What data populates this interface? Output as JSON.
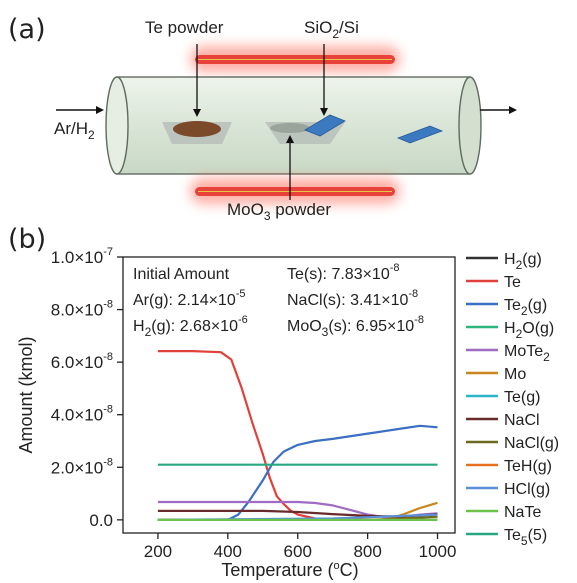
{
  "panel_a": {
    "label": "(a)",
    "te_powder": "Te powder",
    "substrate": {
      "main": "SiO",
      "sub": "2",
      "tail": "/Si"
    },
    "gas": {
      "main": "Ar/H",
      "sub": "2"
    },
    "moo3": {
      "main": "MoO",
      "sub": "3",
      "tail": " powder"
    },
    "colors": {
      "tube": "#dfe9dd",
      "heater": "#e8413a",
      "te_pile": "#7a4a2a",
      "substrate": "#3b79c0",
      "boat": "#b9c1bb"
    },
    "icons": [
      "arrow-right-icon",
      "arrow-right-icon",
      "arrow-down-icon",
      "arrow-up-icon"
    ]
  },
  "panel_b": {
    "label": "(b)"
  },
  "chart_data": {
    "type": "line",
    "xlabel": {
      "main": "Temperature (",
      "sup": "o",
      "tail": "C)"
    },
    "ylabel": "Amount (kmol)",
    "xlim": [
      100,
      1050
    ],
    "ylim": [
      -5e-09,
      1e-07
    ],
    "x_ticks": [
      {
        "v": 200,
        "label": "200"
      },
      {
        "v": 400,
        "label": "400"
      },
      {
        "v": 600,
        "label": "600"
      },
      {
        "v": 800,
        "label": "800"
      },
      {
        "v": 1000,
        "label": "1000"
      }
    ],
    "y_ticks": [
      {
        "v": 0.0,
        "label": "0.0",
        "exp": ""
      },
      {
        "v": 2e-08,
        "label": "2.0x10",
        "exp": "-8"
      },
      {
        "v": 4e-08,
        "label": "4.0x10",
        "exp": "-8"
      },
      {
        "v": 6e-08,
        "label": "6.0x10",
        "exp": "-8"
      },
      {
        "v": 8e-08,
        "label": "8.0x10",
        "exp": "-8"
      },
      {
        "v": 1e-07,
        "label": "1.0x10",
        "exp": "-7"
      }
    ],
    "annotations": {
      "initial_title": "Initial Amount",
      "rows": [
        {
          "lhs": "Ar(g): 2.14×10",
          "exp": "-5"
        },
        {
          "lhs": "H",
          "sub": "2",
          "rest": "(g): 2.68×10",
          "exp": "-6"
        },
        {
          "lhs": "Te(s): 7.83×10",
          "exp": "-8"
        },
        {
          "lhs": "NaCl(s): 3.41×10",
          "exp": "-8"
        },
        {
          "lhs": "MoO",
          "sub": "3",
          "rest": "(s): 6.95×10",
          "exp": "-8"
        }
      ]
    },
    "series": [
      {
        "name": "H",
        "sub": "2",
        "tail": "(g)",
        "color": "#333333",
        "x": [
          200,
          1000
        ],
        "y": [
          0.0,
          0.0
        ]
      },
      {
        "name": "Te",
        "color": "#e0413a",
        "x": [
          200,
          300,
          380,
          410,
          440,
          470,
          500,
          520,
          540,
          560,
          580,
          600,
          650,
          700,
          1000
        ],
        "y": [
          6.42e-08,
          6.42e-08,
          6.38e-08,
          6.1e-08,
          5e-08,
          3.7e-08,
          2.5e-08,
          1.6e-08,
          9e-09,
          6e-09,
          3.5e-09,
          2e-09,
          5e-10,
          0.0,
          0.0
        ]
      },
      {
        "name": "Te",
        "sub": "2",
        "tail": "(g)",
        "color": "#3b6fc4",
        "x": [
          200,
          400,
          430,
          460,
          500,
          530,
          560,
          600,
          650,
          700,
          800,
          900,
          950,
          1000
        ],
        "y": [
          0.0,
          0.0,
          2e-09,
          7e-09,
          1.5e-08,
          2.2e-08,
          2.6e-08,
          2.85e-08,
          3e-08,
          3.08e-08,
          3.28e-08,
          3.48e-08,
          3.58e-08,
          3.52e-08
        ]
      },
      {
        "name": "H",
        "sub": "2",
        "tail": "O(g)",
        "color": "#2bb67c",
        "x": [
          200,
          1000
        ],
        "y": [
          0.0,
          0.0
        ]
      },
      {
        "name": "MoTe",
        "sub": "2",
        "tail": "",
        "color": "#a06bc4",
        "x": [
          200,
          600,
          650,
          700,
          750,
          800,
          850,
          900,
          950,
          1000
        ],
        "y": [
          6.8e-09,
          6.8e-09,
          6.4e-09,
          5.5e-09,
          3.8e-09,
          2e-09,
          1e-09,
          1.2e-09,
          2e-09,
          2.5e-09
        ]
      },
      {
        "name": "Mo",
        "color": "#c8861c",
        "x": [
          200,
          850,
          900,
          950,
          1000
        ],
        "y": [
          0.0,
          0.0,
          2e-09,
          4.5e-09,
          6.5e-09
        ]
      },
      {
        "name": "Te(g)",
        "color": "#2ab5c8",
        "x": [
          200,
          1000
        ],
        "y": [
          0.0,
          0.0
        ]
      },
      {
        "name": "NaCl",
        "color": "#6b2a2a",
        "x": [
          200,
          500,
          600,
          700,
          800,
          900,
          1000
        ],
        "y": [
          3.4e-09,
          3.4e-09,
          3e-09,
          2.2e-09,
          1.5e-09,
          1.2e-09,
          2.2e-09
        ]
      },
      {
        "name": "NaCl(g)",
        "color": "#6b6a1e",
        "x": [
          200,
          800,
          900,
          1000
        ],
        "y": [
          0.0,
          0.0,
          5e-10,
          1.2e-09
        ]
      },
      {
        "name": "TeH(g)",
        "color": "#e8711f",
        "x": [
          200,
          1000
        ],
        "y": [
          0.0,
          0.0
        ]
      },
      {
        "name": "HCl(g)",
        "color": "#5a8fd8",
        "x": [
          200,
          700,
          800,
          900,
          1000
        ],
        "y": [
          0.0,
          5e-10,
          1e-09,
          1.5e-09,
          2e-09
        ]
      },
      {
        "name": "NaTe",
        "color": "#6cc24a",
        "x": [
          200,
          1000
        ],
        "y": [
          0.0,
          0.0
        ]
      },
      {
        "name": "Te",
        "sub": "5",
        "tail": "(5)",
        "color": "#27a882",
        "x": [
          200,
          1000
        ],
        "y": [
          2.1e-08,
          2.1e-08
        ]
      }
    ]
  }
}
